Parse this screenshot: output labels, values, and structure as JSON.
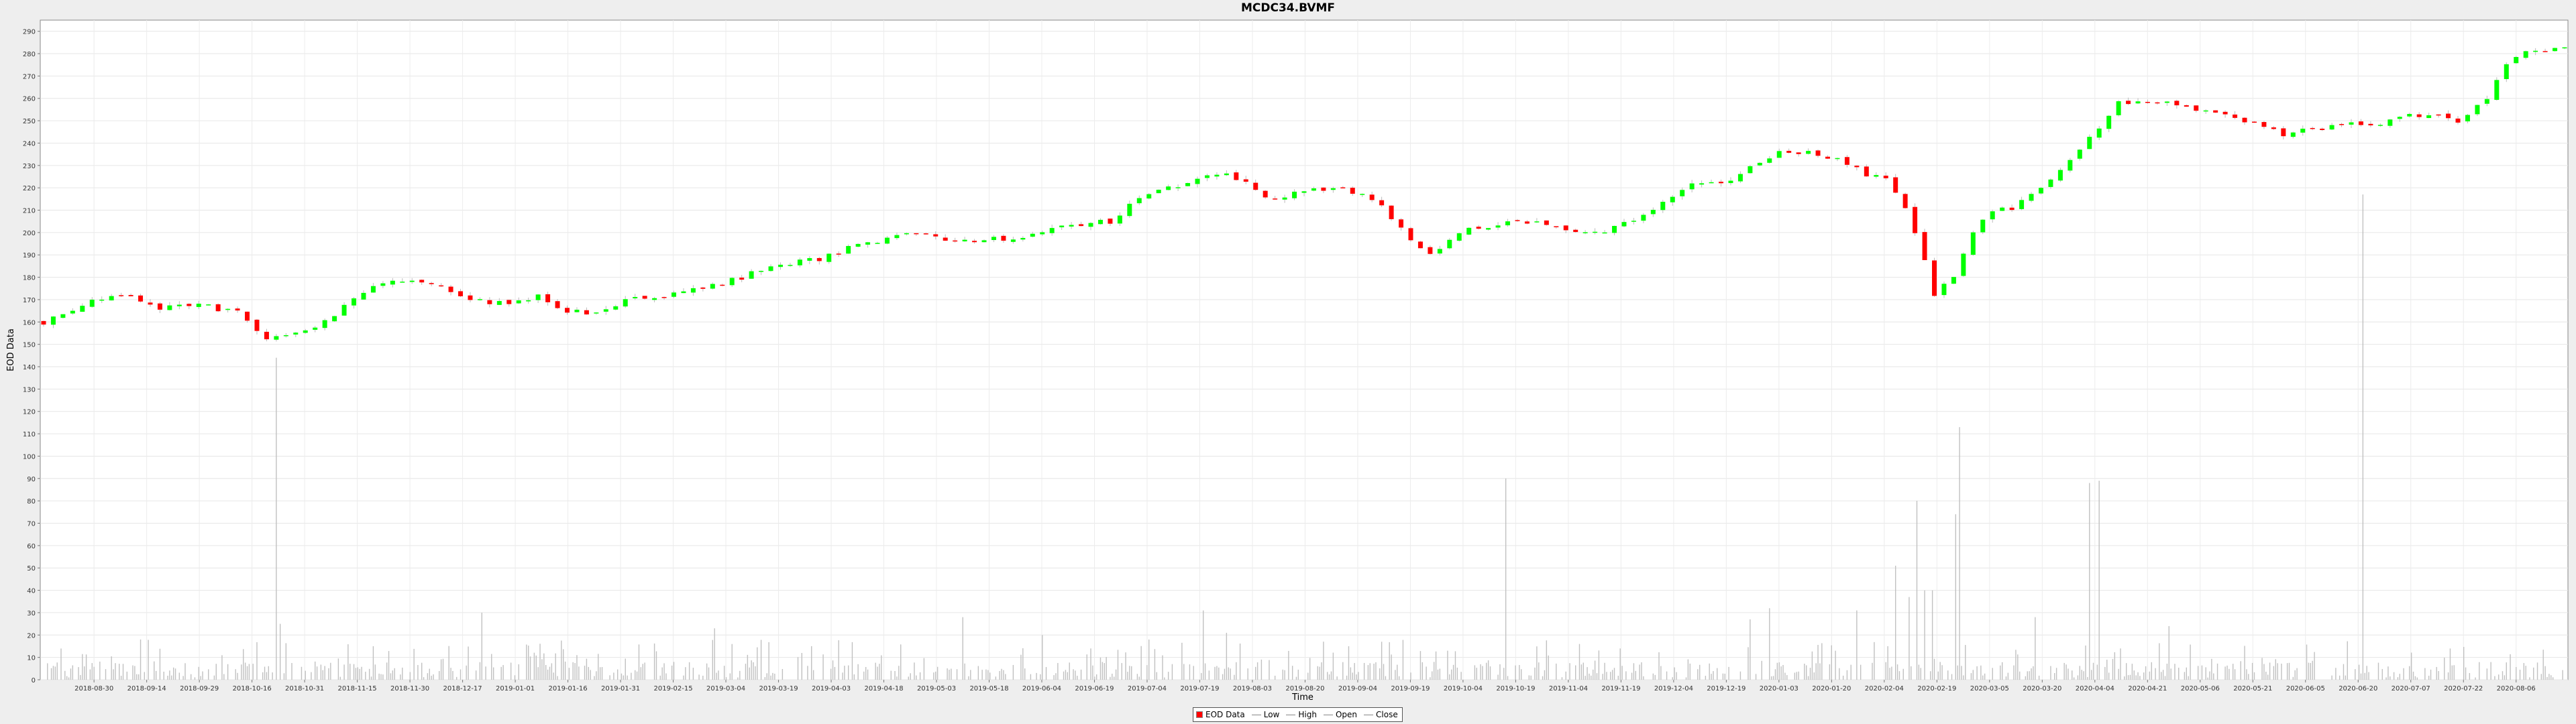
{
  "chart_data": {
    "type": "candlestick",
    "title": "MCDC34.BVMF",
    "xlabel": "Time",
    "ylabel": "EOD Data",
    "ylim": [
      0,
      295
    ],
    "y_ticks": [
      0,
      10,
      20,
      30,
      40,
      50,
      60,
      70,
      80,
      90,
      100,
      110,
      120,
      130,
      140,
      150,
      160,
      170,
      180,
      190,
      200,
      210,
      220,
      230,
      240,
      250,
      260,
      270,
      280,
      290
    ],
    "x_ticks": [
      "2018-08-30",
      "2018-09-14",
      "2018-09-29",
      "2018-10-16",
      "2018-10-31",
      "2018-11-15",
      "2018-11-30",
      "2018-12-17",
      "2019-01-01",
      "2019-01-16",
      "2019-01-31",
      "2019-02-15",
      "2019-03-04",
      "2019-03-19",
      "2019-04-03",
      "2019-04-18",
      "2019-05-03",
      "2019-05-18",
      "2019-06-04",
      "2019-06-19",
      "2019-07-04",
      "2019-07-19",
      "2019-08-03",
      "2019-08-20",
      "2019-09-04",
      "2019-09-19",
      "2019-10-04",
      "2019-10-19",
      "2019-11-04",
      "2019-11-19",
      "2019-12-04",
      "2019-12-19",
      "2020-01-03",
      "2020-01-20",
      "2020-02-04",
      "2020-02-19",
      "2020-03-05",
      "2020-03-20",
      "2020-04-04",
      "2020-04-21",
      "2020-05-06",
      "2020-05-21",
      "2020-06-05",
      "2020-06-20",
      "2020-07-07",
      "2020-07-22",
      "2020-08-06"
    ],
    "grid": true,
    "up_color": "#00ff00",
    "down_color": "#ff0000",
    "volume_color": "#c0c0c0",
    "close_anchors": [
      [
        0,
        160
      ],
      [
        20,
        168
      ],
      [
        40,
        172
      ],
      [
        60,
        166
      ],
      [
        80,
        168
      ],
      [
        100,
        164
      ],
      [
        115,
        153
      ],
      [
        130,
        155
      ],
      [
        145,
        160
      ],
      [
        160,
        170
      ],
      [
        175,
        178
      ],
      [
        190,
        178
      ],
      [
        205,
        175
      ],
      [
        220,
        170
      ],
      [
        240,
        168
      ],
      [
        255,
        172
      ],
      [
        270,
        165
      ],
      [
        285,
        164
      ],
      [
        300,
        170
      ],
      [
        320,
        172
      ],
      [
        340,
        175
      ],
      [
        360,
        180
      ],
      [
        380,
        186
      ],
      [
        400,
        188
      ],
      [
        415,
        193
      ],
      [
        430,
        196
      ],
      [
        450,
        200
      ],
      [
        465,
        197
      ],
      [
        480,
        196
      ],
      [
        500,
        198
      ],
      [
        515,
        200
      ],
      [
        530,
        203
      ],
      [
        550,
        205
      ],
      [
        565,
        216
      ],
      [
        580,
        220
      ],
      [
        595,
        224
      ],
      [
        610,
        226
      ],
      [
        620,
        222
      ],
      [
        635,
        214
      ],
      [
        650,
        219
      ],
      [
        665,
        220
      ],
      [
        680,
        217
      ],
      [
        690,
        212
      ],
      [
        705,
        196
      ],
      [
        715,
        190
      ],
      [
        730,
        200
      ],
      [
        745,
        203
      ],
      [
        760,
        206
      ],
      [
        775,
        203
      ],
      [
        790,
        200
      ],
      [
        805,
        200
      ],
      [
        820,
        206
      ],
      [
        835,
        214
      ],
      [
        850,
        222
      ],
      [
        865,
        222
      ],
      [
        880,
        229
      ],
      [
        895,
        236
      ],
      [
        910,
        236
      ],
      [
        925,
        233
      ],
      [
        940,
        226
      ],
      [
        950,
        224
      ],
      [
        960,
        210
      ],
      [
        968,
        195
      ],
      [
        975,
        172
      ],
      [
        985,
        180
      ],
      [
        995,
        200
      ],
      [
        1005,
        210
      ],
      [
        1015,
        211
      ],
      [
        1030,
        220
      ],
      [
        1045,
        232
      ],
      [
        1060,
        247
      ],
      [
        1070,
        258
      ],
      [
        1085,
        259
      ],
      [
        1100,
        257
      ],
      [
        1115,
        255
      ],
      [
        1125,
        253
      ],
      [
        1140,
        248
      ],
      [
        1155,
        244
      ],
      [
        1170,
        246
      ],
      [
        1185,
        249
      ],
      [
        1200,
        248
      ],
      [
        1215,
        252
      ],
      [
        1230,
        253
      ],
      [
        1245,
        250
      ],
      [
        1260,
        260
      ],
      [
        1270,
        275
      ],
      [
        1280,
        282
      ]
    ],
    "volume_spikes": [
      [
        120,
        144
      ],
      [
        122,
        25
      ],
      [
        170,
        15
      ],
      [
        226,
        30
      ],
      [
        346,
        23
      ],
      [
        474,
        28
      ],
      [
        515,
        20
      ],
      [
        540,
        14
      ],
      [
        570,
        18
      ],
      [
        598,
        31
      ],
      [
        610,
        21
      ],
      [
        690,
        17
      ],
      [
        724,
        13
      ],
      [
        754,
        90
      ],
      [
        792,
        16
      ],
      [
        813,
        14
      ],
      [
        880,
        27
      ],
      [
        890,
        32
      ],
      [
        935,
        31
      ],
      [
        955,
        51
      ],
      [
        962,
        37
      ],
      [
        966,
        80
      ],
      [
        970,
        40
      ],
      [
        974,
        40
      ],
      [
        986,
        74
      ],
      [
        988,
        113
      ],
      [
        1027,
        28
      ],
      [
        1055,
        88
      ],
      [
        1060,
        89
      ],
      [
        1096,
        24
      ],
      [
        1196,
        217
      ]
    ]
  },
  "legend": [
    {
      "label": "EOD Data",
      "kind": "box",
      "color": "#ff0000"
    },
    {
      "label": "Low",
      "kind": "line",
      "color": "#888888"
    },
    {
      "label": "High",
      "kind": "line",
      "color": "#888888"
    },
    {
      "label": "Open",
      "kind": "line",
      "color": "#888888"
    },
    {
      "label": "Close",
      "kind": "line",
      "color": "#888888"
    }
  ]
}
